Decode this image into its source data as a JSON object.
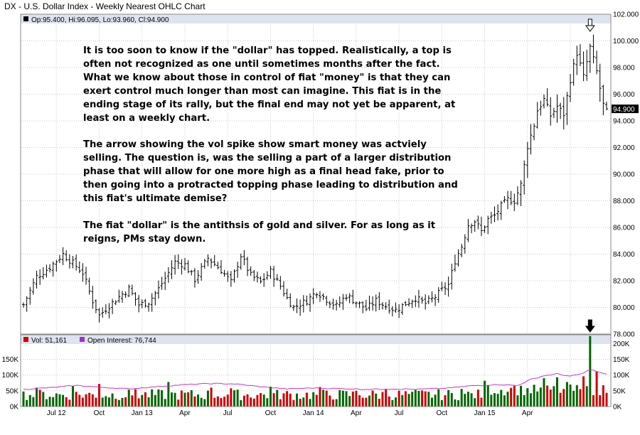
{
  "chart_data": [
    {
      "type": "ohlc",
      "title": "DX - U.S. Dollar Index - Weekly Nearest OHLC Chart",
      "summary_label": "Op:95.400, Hi:96.095, Lo:93.960, Cl:94.900",
      "last_close_label": "94.900",
      "last_close": 94.9,
      "ylim": [
        78,
        102
      ],
      "y_ticks": [
        "78.000",
        "80.000",
        "82.000",
        "84.000",
        "86.000",
        "88.000",
        "90.000",
        "92.000",
        "94.000",
        "96.000",
        "98.000",
        "100.000",
        "102.000"
      ],
      "x_labels": [
        "Jul 12",
        "Oct",
        "Jan 13",
        "Apr",
        "Jul",
        "Oct",
        "Jan 14",
        "Apr",
        "Jul",
        "Oct",
        "Jan 15",
        "Apr"
      ],
      "anchor_closes": [
        [
          0,
          80.2
        ],
        [
          4,
          82.3
        ],
        [
          8,
          83.0
        ],
        [
          12,
          84.0
        ],
        [
          16,
          83.1
        ],
        [
          18,
          82.6
        ],
        [
          21,
          80.5
        ],
        [
          23,
          79.4
        ],
        [
          25,
          79.9
        ],
        [
          29,
          80.8
        ],
        [
          32,
          81.4
        ],
        [
          35,
          80.2
        ],
        [
          38,
          80.4
        ],
        [
          41,
          81.4
        ],
        [
          44,
          82.6
        ],
        [
          46,
          83.4
        ],
        [
          49,
          83.2
        ],
        [
          52,
          82.1
        ],
        [
          54,
          82.9
        ],
        [
          56,
          83.7
        ],
        [
          60,
          82.8
        ],
        [
          63,
          81.9
        ],
        [
          66,
          83.9
        ],
        [
          69,
          82.4
        ],
        [
          72,
          81.9
        ],
        [
          75,
          82.7
        ],
        [
          78,
          81.6
        ],
        [
          80,
          80.7
        ],
        [
          82,
          80.0
        ],
        [
          86,
          80.5
        ],
        [
          89,
          81.2
        ],
        [
          92,
          80.6
        ],
        [
          95,
          80.1
        ],
        [
          98,
          80.9
        ],
        [
          101,
          80.4
        ],
        [
          104,
          79.9
        ],
        [
          107,
          80.5
        ],
        [
          110,
          80.1
        ],
        [
          113,
          79.8
        ],
        [
          116,
          80.3
        ],
        [
          119,
          80.7
        ],
        [
          122,
          80.3
        ],
        [
          125,
          80.8
        ],
        [
          127,
          81.3
        ],
        [
          129,
          81.7
        ],
        [
          131,
          83.5
        ],
        [
          133,
          84.6
        ],
        [
          135,
          86.2
        ],
        [
          137,
          86.5
        ],
        [
          139,
          85.7
        ],
        [
          141,
          86.6
        ],
        [
          143,
          86.9
        ],
        [
          145,
          87.6
        ],
        [
          147,
          88.1
        ],
        [
          149,
          88.0
        ],
        [
          151,
          89.2
        ],
        [
          153,
          92.1
        ],
        [
          155,
          93.7
        ],
        [
          156,
          94.8
        ],
        [
          158,
          95.6
        ],
        [
          160,
          94.4
        ],
        [
          162,
          95.1
        ],
        [
          164,
          94.5
        ],
        [
          166,
          97.1
        ],
        [
          168,
          99.1
        ],
        [
          170,
          97.3
        ],
        [
          172,
          99.5
        ],
        [
          174,
          97.7
        ],
        [
          176,
          95.2
        ],
        [
          177,
          94.9
        ]
      ]
    },
    {
      "type": "bar_line",
      "vol_label": "Vol: 51,161",
      "oi_label": "Open Interest: 76,744",
      "left_ticks": [
        "0K",
        "50K",
        "100K",
        "150K"
      ],
      "right_ticks": [
        "0K",
        "50K",
        "100K",
        "150K",
        "200K"
      ],
      "ylim": [
        0,
        228000
      ],
      "spike_week": 172,
      "volume_spikes": [
        [
          4,
          60000
        ],
        [
          15,
          66000
        ],
        [
          23,
          72000
        ],
        [
          34,
          55000
        ],
        [
          44,
          78000
        ],
        [
          57,
          60000
        ],
        [
          63,
          58000
        ],
        [
          75,
          63000
        ],
        [
          90,
          62000
        ],
        [
          101,
          50000
        ],
        [
          110,
          56000
        ],
        [
          118,
          47000
        ],
        [
          133,
          56000
        ],
        [
          140,
          82000
        ],
        [
          149,
          66000
        ],
        [
          158,
          90000
        ],
        [
          162,
          93000
        ],
        [
          165,
          78000
        ],
        [
          170,
          96000
        ],
        [
          172,
          224000
        ],
        [
          174,
          112000
        ]
      ],
      "oi_points": [
        [
          0,
          55000
        ],
        [
          8,
          60000
        ],
        [
          16,
          67000
        ],
        [
          24,
          61000
        ],
        [
          32,
          56000
        ],
        [
          40,
          63000
        ],
        [
          48,
          69000
        ],
        [
          56,
          73000
        ],
        [
          64,
          72000
        ],
        [
          72,
          63000
        ],
        [
          80,
          56000
        ],
        [
          88,
          59000
        ],
        [
          96,
          57000
        ],
        [
          104,
          55000
        ],
        [
          112,
          56000
        ],
        [
          120,
          55000
        ],
        [
          128,
          58000
        ],
        [
          136,
          66000
        ],
        [
          144,
          70000
        ],
        [
          150,
          67000
        ],
        [
          154,
          86000
        ],
        [
          158,
          98000
        ],
        [
          162,
          104000
        ],
        [
          166,
          96000
        ],
        [
          170,
          106000
        ],
        [
          172,
          118000
        ],
        [
          175,
          108000
        ],
        [
          177,
          102000
        ]
      ]
    }
  ],
  "annotation": {
    "paragraphs": [
      [
        "It is too soon to know if the \"dollar\" has topped.  Realistically, a top is",
        "often not recognized as one until sometimes months after the fact.",
        "What we know about those in control of fiat \"money\" is that they can",
        "exert control much longer than most can imagine.  This fiat is in the",
        "ending stage of its rally, but the final end may not yet be apparent, at",
        "least on a weekly chart."
      ],
      [
        "The arrow showing the vol spike show smart money was actviely",
        "selling.  The question is, was the selling a part of a larger distribution",
        "phase that will allow for one more high as a final head fake, prior to",
        "then going into a protracted topping phase leading to distribution and",
        "this fiat's ultimate demise?"
      ],
      [
        "The fiat \"dollar\" is the antithsis of gold and silver.  For as long as it",
        "reigns, PMs stay down."
      ]
    ]
  },
  "colors": {
    "up_bar": "#000000",
    "down_volume": "#cc0000",
    "up_volume": "#006600",
    "open_interest": "#cc33cc",
    "legend_band": "#dde3ef",
    "grid": "#c8c8c8",
    "arrow": "#000000"
  }
}
